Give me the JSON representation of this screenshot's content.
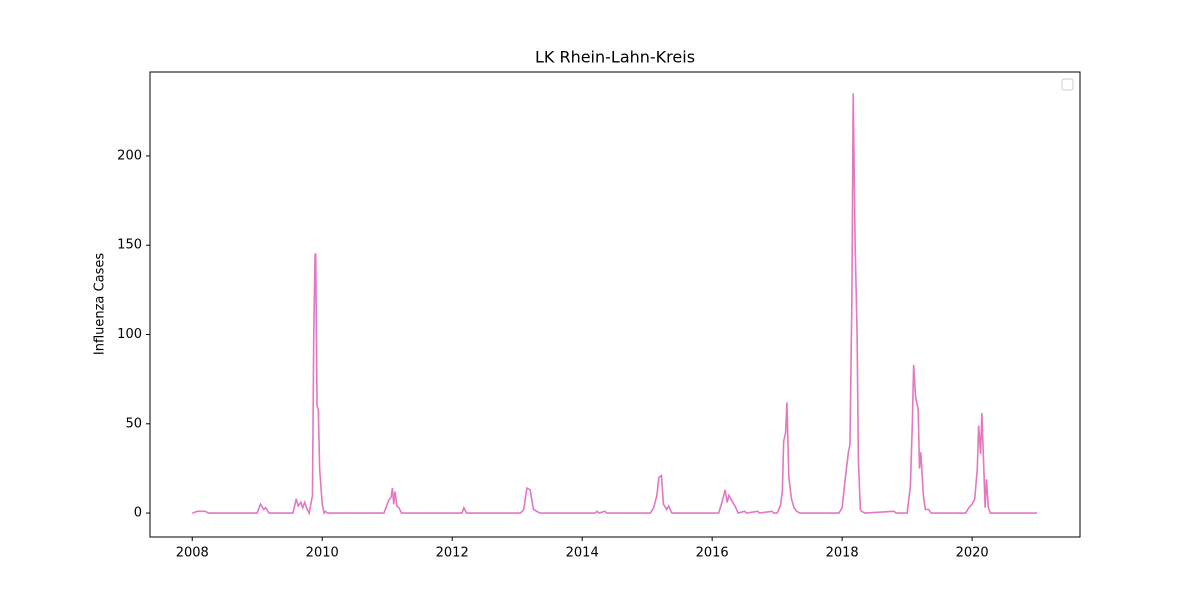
{
  "chart_data": {
    "type": "line",
    "title": "LK Rhein-Lahn-Kreis",
    "y_label": "Influenza Cases",
    "x": [
      2008.0,
      2008.08,
      2008.2,
      2008.25,
      2009.0,
      2009.05,
      2009.1,
      2009.13,
      2009.18,
      2009.55,
      2009.6,
      2009.63,
      2009.67,
      2009.7,
      2009.73,
      2009.77,
      2009.8,
      2009.85,
      2009.87,
      2009.89,
      2009.9,
      2009.92,
      2009.94,
      2009.96,
      2010.0,
      2010.03,
      2010.05,
      2010.08,
      2010.95,
      2011.02,
      2011.06,
      2011.08,
      2011.1,
      2011.12,
      2011.15,
      2011.18,
      2011.22,
      2012.15,
      2012.18,
      2012.22,
      2013.05,
      2013.1,
      2013.15,
      2013.2,
      2013.25,
      2013.3,
      2013.35,
      2014.2,
      2014.23,
      2014.26,
      2014.35,
      2014.38,
      2015.05,
      2015.1,
      2015.15,
      2015.18,
      2015.22,
      2015.25,
      2015.3,
      2015.33,
      2015.38,
      2016.1,
      2016.15,
      2016.2,
      2016.23,
      2016.26,
      2016.3,
      2016.35,
      2016.4,
      2016.5,
      2016.53,
      2016.7,
      2016.73,
      2016.92,
      2016.95,
      2017.0,
      2017.05,
      2017.08,
      2017.1,
      2017.13,
      2017.15,
      2017.18,
      2017.22,
      2017.26,
      2017.3,
      2017.35,
      2017.95,
      2018.0,
      2018.05,
      2018.1,
      2018.12,
      2018.15,
      2018.17,
      2018.2,
      2018.23,
      2018.25,
      2018.28,
      2018.3,
      2018.35,
      2018.8,
      2018.83,
      2019.0,
      2019.05,
      2019.08,
      2019.1,
      2019.13,
      2019.17,
      2019.19,
      2019.21,
      2019.25,
      2019.28,
      2019.33,
      2019.37,
      2019.9,
      2019.95,
      2020.0,
      2020.04,
      2020.08,
      2020.1,
      2020.13,
      2020.15,
      2020.18,
      2020.2,
      2020.22,
      2020.25,
      2020.28,
      2021.0
    ],
    "series": [
      {
        "color": "#e377c2",
        "values": [
          0,
          1,
          1,
          0,
          0,
          5,
          2,
          3,
          0,
          0,
          8,
          4,
          6,
          3,
          6,
          2,
          0,
          10,
          100,
          145,
          145,
          60,
          58,
          25,
          5,
          0,
          1,
          0,
          0,
          7,
          9,
          14,
          5,
          12,
          4,
          3,
          0,
          0,
          3,
          0,
          0,
          2,
          14,
          13,
          2,
          1,
          0,
          0,
          1,
          0,
          1,
          0,
          0,
          3,
          10,
          20,
          21,
          5,
          2,
          4,
          0,
          0,
          6,
          13,
          6,
          10,
          7,
          4,
          0,
          1,
          0,
          1,
          0,
          1,
          0,
          0,
          4,
          12,
          40,
          45,
          62,
          20,
          8,
          3,
          1,
          0,
          0,
          3,
          20,
          35,
          38,
          120,
          235,
          150,
          100,
          30,
          2,
          1,
          0,
          1,
          0,
          0,
          15,
          50,
          83,
          65,
          58,
          25,
          34,
          10,
          2,
          2,
          0,
          0,
          3,
          5,
          8,
          25,
          49,
          33,
          56,
          25,
          3,
          19,
          3,
          0,
          0
        ]
      }
    ],
    "xlim": [
      2007.35,
      2021.66
    ],
    "xticks": [
      2008,
      2010,
      2012,
      2014,
      2016,
      2018,
      2020
    ],
    "ylim": [
      -13.4,
      247
    ],
    "yticks": [
      0,
      50,
      100,
      150,
      200
    ],
    "legend": "upper right"
  }
}
